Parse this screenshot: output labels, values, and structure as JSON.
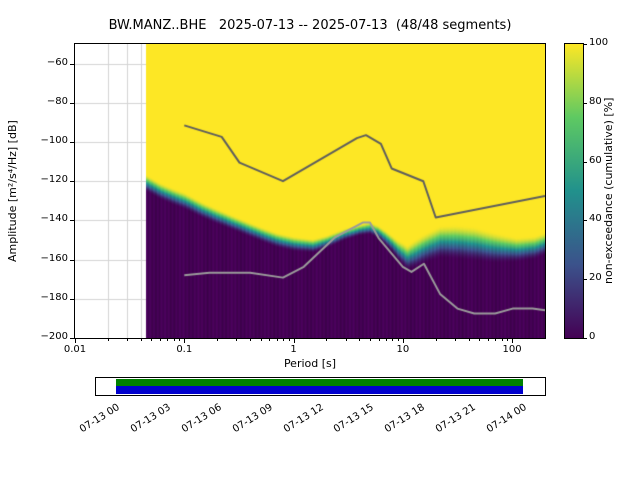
{
  "title": "BW.MANZ..BHE   2025-07-13 -- 2025-07-13  (48/48 segments)",
  "chart_data": {
    "type": "heatmap",
    "title": "BW.MANZ..BHE   2025-07-13 -- 2025-07-13  (48/48 segments)",
    "xlabel": "Period [s]",
    "ylabel": "Amplitude [m²/s⁴/Hz] [dB]",
    "xscale": "log",
    "xlim": [
      0.01,
      200
    ],
    "ylim": [
      -200,
      -50
    ],
    "xticks": [
      {
        "v": 0.01,
        "label": "0.01"
      },
      {
        "v": 0.1,
        "label": "0.1"
      },
      {
        "v": 1,
        "label": "1"
      },
      {
        "v": 10,
        "label": "10"
      },
      {
        "v": 100,
        "label": "100"
      }
    ],
    "yticks": [
      {
        "v": -60,
        "label": "−60"
      },
      {
        "v": -80,
        "label": "−80"
      },
      {
        "v": -100,
        "label": "−100"
      },
      {
        "v": -120,
        "label": "−120"
      },
      {
        "v": -140,
        "label": "−140"
      },
      {
        "v": -160,
        "label": "−160"
      },
      {
        "v": -180,
        "label": "−180"
      },
      {
        "v": -200,
        "label": "−200"
      }
    ],
    "colorbar": {
      "label": "non-exceedance (cumulative) [%]",
      "range": [
        0,
        100
      ],
      "ticks": [
        0,
        20,
        40,
        60,
        80,
        100
      ],
      "colormap": "viridis",
      "stops": [
        "#440154",
        "#3b528b",
        "#21918c",
        "#5ec962",
        "#fde725"
      ]
    },
    "data_period_range": [
      0.045,
      200
    ],
    "distribution_mode_db": {
      "comment": "dB level of the 50% non-exceedance boundary vs period (yellow above, dark purple below)",
      "periods": [
        0.045,
        0.06,
        0.08,
        0.1,
        0.15,
        0.2,
        0.3,
        0.5,
        0.7,
        1,
        1.5,
        2,
        3,
        4,
        5,
        6,
        7,
        8,
        9,
        10,
        11,
        13,
        15,
        18,
        22,
        30,
        45,
        70,
        110,
        160,
        200
      ],
      "db": [
        -121,
        -125,
        -128,
        -130,
        -135,
        -138,
        -142,
        -147,
        -150,
        -152,
        -153,
        -151,
        -147,
        -145,
        -144,
        -146,
        -149,
        -152,
        -155,
        -157,
        -159,
        -157,
        -155,
        -153,
        -151,
        -151,
        -152,
        -154,
        -155,
        -154,
        -152
      ]
    },
    "distribution_spread_db": {
      "comment": "width in dB of the color transition band vs period",
      "periods": [
        0.045,
        0.1,
        0.3,
        1,
        2,
        4,
        6,
        8,
        10,
        13,
        17,
        22,
        30,
        45,
        70,
        110,
        200
      ],
      "width": [
        9,
        9,
        8,
        8,
        7,
        6,
        7,
        9,
        12,
        15,
        16,
        17,
        18,
        18,
        16,
        13,
        12
      ]
    },
    "noise_models": {
      "nhnm": {
        "name": "Peterson high noise model",
        "color": "#5e5e5e",
        "periods": [
          0.1,
          0.22,
          0.32,
          0.8,
          3.8,
          4.6,
          6.3,
          7.9,
          15.4,
          20,
          200
        ],
        "db": [
          -91.5,
          -97.4,
          -110.5,
          -120,
          -98,
          -96.5,
          -101,
          -113.5,
          -120,
          -138.5,
          -127.6
        ]
      },
      "nlnm": {
        "name": "Peterson low noise model",
        "color": "#9b9b9b",
        "periods": [
          0.1,
          0.17,
          0.4,
          0.8,
          1.24,
          2.4,
          4.3,
          5,
          6,
          10,
          12,
          15.6,
          21.9,
          31.6,
          45,
          70,
          101,
          154,
          200
        ],
        "db": [
          -168,
          -166.7,
          -166.7,
          -169.2,
          -163.7,
          -148.6,
          -141.1,
          -141.1,
          -149,
          -163.7,
          -166.3,
          -162.1,
          -177.5,
          -185,
          -187.5,
          -187.5,
          -185,
          -185,
          -185.9
        ]
      }
    },
    "grid_color": "#d4d4d4"
  },
  "time_axis": {
    "tick_labels": [
      "07-13 00",
      "07-13 03",
      "07-13 06",
      "07-13 09",
      "07-13 12",
      "07-13 15",
      "07-13 18",
      "07-13 21",
      "07-14 00"
    ],
    "bar": {
      "outline_color": "#000000",
      "timerange_color": "#008000",
      "coverage_color": "#0000cd",
      "fill_start_fraction": 0.0445,
      "fill_end_fraction": 0.951
    }
  }
}
